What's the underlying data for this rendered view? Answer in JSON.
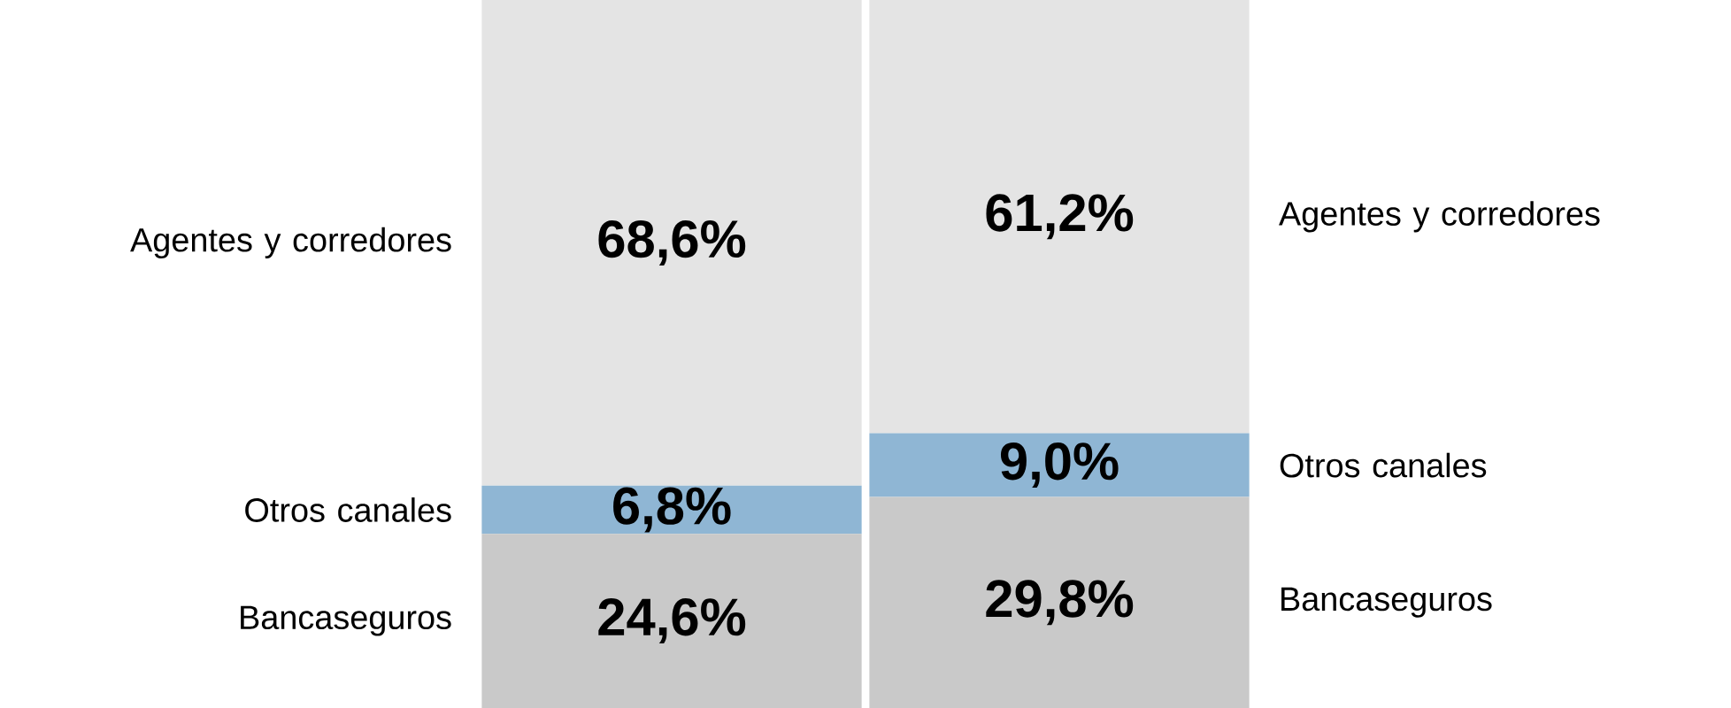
{
  "chart_data": {
    "type": "bar",
    "stacked": true,
    "categories": [
      null,
      null
    ],
    "tick_labels": false,
    "series": [
      {
        "name": "Bancaseguros",
        "color": "#c9c9c9",
        "values": [
          24.6,
          29.8
        ],
        "value_labels": [
          "24,6%",
          "29,8%"
        ]
      },
      {
        "name": "Otros canales",
        "color": "#8fb6d4",
        "values": [
          6.8,
          9.0
        ],
        "value_labels": [
          "6,8%",
          "9,0%"
        ]
      },
      {
        "name": "Agentes y corredores",
        "color": "#e4e4e4",
        "values": [
          68.6,
          61.2
        ],
        "value_labels": [
          "68,6%",
          "61,2%"
        ]
      }
    ]
  }
}
